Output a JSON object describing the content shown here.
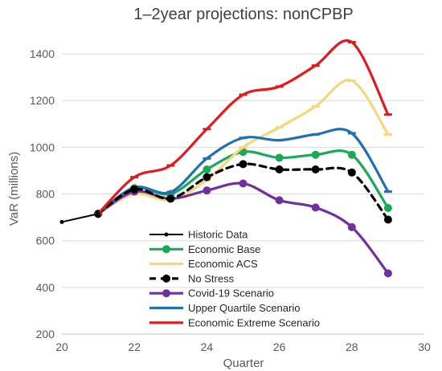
{
  "chart_data": {
    "type": "line",
    "title": "1–2year projections: nonCPBP",
    "xlabel": "Quarter",
    "ylabel": "VaR (millions)",
    "xlim": [
      20,
      30
    ],
    "ylim": [
      200,
      1500
    ],
    "xticks": [
      20,
      22,
      24,
      26,
      28,
      30
    ],
    "yticks": [
      200,
      400,
      600,
      800,
      1000,
      1200,
      1400
    ],
    "grid": "horizontal",
    "legend_position": "bottom-center",
    "series": [
      {
        "name": "Historic Data",
        "color": "#000000",
        "dashed": false,
        "marker": "dot",
        "x": [
          20,
          21
        ],
        "y": [
          680,
          715
        ]
      },
      {
        "name": "Economic Base",
        "color": "#1aaa55",
        "dashed": false,
        "marker": "circle",
        "x": [
          21,
          22,
          23,
          24,
          25,
          26,
          27,
          28,
          29
        ],
        "y": [
          715,
          825,
          800,
          905,
          980,
          955,
          968,
          968,
          740
        ]
      },
      {
        "name": "Economic ACS",
        "color": "#f5d67a",
        "dashed": false,
        "marker": "dash",
        "x": [
          21,
          22,
          23,
          24,
          25,
          26,
          27,
          28,
          29
        ],
        "y": [
          715,
          800,
          775,
          860,
          1000,
          1085,
          1175,
          1285,
          1055
        ]
      },
      {
        "name": "No Stress",
        "color": "#000000",
        "dashed": true,
        "marker": "circle",
        "x": [
          21,
          22,
          23,
          24,
          25,
          26,
          27,
          28,
          29
        ],
        "y": [
          715,
          820,
          780,
          872,
          928,
          905,
          905,
          892,
          690
        ]
      },
      {
        "name": "Covid-19 Scenario",
        "color": "#7030a0",
        "dashed": false,
        "marker": "circle",
        "x": [
          21,
          22,
          23,
          24,
          25,
          26,
          27,
          28,
          29
        ],
        "y": [
          715,
          810,
          780,
          815,
          845,
          773,
          742,
          658,
          460
        ]
      },
      {
        "name": "Upper Quartile Scenario",
        "color": "#1f6fb5",
        "dashed": false,
        "marker": "dash",
        "x": [
          21,
          22,
          23,
          24,
          25,
          26,
          27,
          28,
          29
        ],
        "y": [
          715,
          828,
          808,
          952,
          1040,
          1030,
          1055,
          1060,
          810
        ]
      },
      {
        "name": "Economic Extreme Scenario",
        "color": "#e31a1c",
        "dashed": false,
        "marker": "dash",
        "x": [
          21,
          22,
          23,
          24,
          25,
          26,
          27,
          28,
          29
        ],
        "y": [
          715,
          872,
          922,
          1078,
          1225,
          1260,
          1350,
          1450,
          1140
        ]
      }
    ]
  }
}
